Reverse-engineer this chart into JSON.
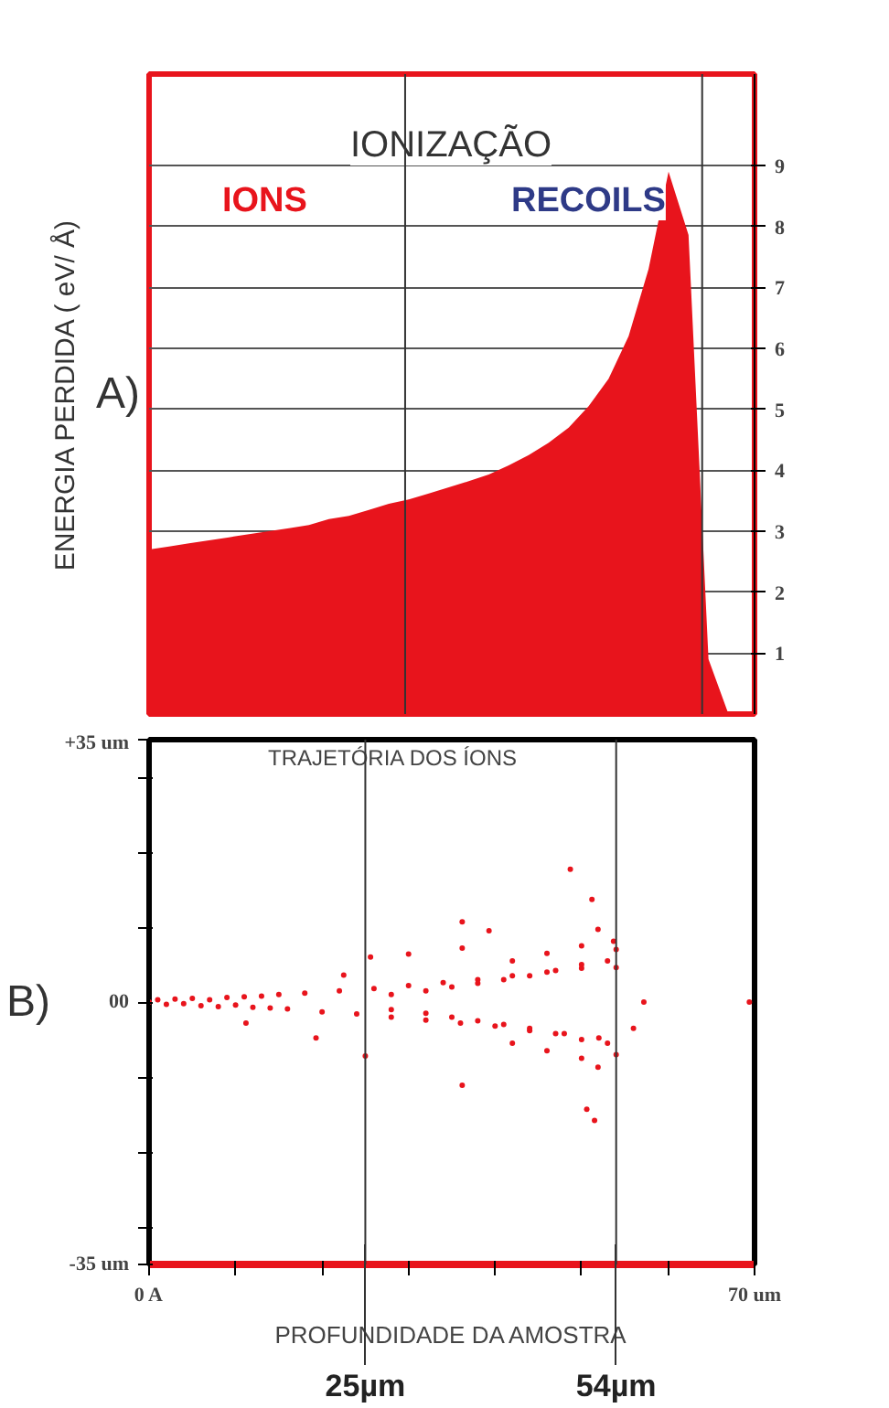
{
  "chart_data": [
    {
      "type": "area",
      "title": "IONIZAÇÃO",
      "ylabel": "ENERGIA PERDIDA ( eV/ Å)",
      "annotations": [
        "IONS",
        "RECOILS",
        "A)"
      ],
      "categories": [
        null,
        null,
        null,
        null,
        null,
        null,
        null,
        null,
        null,
        null,
        null,
        null,
        null,
        null,
        null,
        null,
        null,
        null,
        null,
        null,
        null,
        null,
        null,
        null,
        null,
        null,
        null,
        null,
        null,
        null
      ],
      "series": [
        {
          "color": "#e8141c",
          "values": [
            2.7,
            2.75,
            2.8,
            2.85,
            2.9,
            2.95,
            3.0,
            3.05,
            3.1,
            3.2,
            3.25,
            3.35,
            3.45,
            3.52,
            3.62,
            3.72,
            3.82,
            3.93,
            4.08,
            4.25,
            4.45,
            4.7,
            5.05,
            5.5,
            6.2,
            7.3,
            8.9,
            7.86,
            0.9,
            0
          ]
        }
      ],
      "ylim": [
        0,
        10.5
      ],
      "yticks": [
        1,
        2,
        3,
        4,
        5,
        6,
        7,
        8,
        9
      ],
      "grid": "y"
    },
    {
      "type": "scatter",
      "title": "TRAJETÓRIA DOS ÍONS",
      "xlabel": "PROFUNDIDADE DA AMOSTRA",
      "annotations": [
        "B)"
      ],
      "x": [
        0,
        1,
        2,
        3,
        4,
        5,
        6,
        7,
        8,
        9,
        10,
        11,
        12,
        13,
        14,
        15,
        16,
        18,
        20,
        22,
        24,
        26,
        28,
        30,
        32,
        34,
        36,
        38,
        40,
        42,
        44,
        46,
        48,
        50,
        52,
        54,
        56,
        57.2,
        11.2,
        19.3,
        22.5,
        25.6,
        30,
        36.2,
        39.3,
        48.7,
        51.2,
        36.2,
        51.9,
        53.7,
        25,
        36.2,
        51.5,
        50.6,
        51.9,
        28,
        32,
        35,
        38,
        41,
        44,
        47,
        50,
        53,
        28,
        32,
        35,
        38,
        41,
        44,
        47,
        50,
        53,
        42,
        46,
        50,
        54,
        42,
        46,
        50,
        54,
        69.4
      ],
      "series": [
        {
          "color": "#e8141c",
          "values": [
            0,
            0.3,
            -0.3,
            0.4,
            -0.2,
            0.5,
            -0.5,
            0.3,
            -0.6,
            0.6,
            -0.4,
            0.7,
            -0.7,
            0.8,
            -0.8,
            1.0,
            -0.9,
            1.2,
            -1.3,
            1.5,
            -1.6,
            1.8,
            -2.0,
            2.2,
            -2.4,
            2.6,
            -2.8,
            3.0,
            -3.2,
            3.5,
            -3.8,
            4.0,
            -4.2,
            4.5,
            -4.8,
            4.6,
            -3.5,
            0,
            -2.8,
            -4.8,
            3.6,
            6.0,
            6.4,
            10.7,
            9.5,
            17.7,
            13.7,
            7.2,
            9.7,
            8.1,
            -7.2,
            -11.1,
            -15.8,
            -14.3,
            -8.7,
            1.0,
            1.5,
            2.0,
            2.5,
            3.0,
            3.5,
            4.2,
            5.0,
            5.5,
            -1.0,
            -1.5,
            -2.0,
            -2.5,
            -3.0,
            -3.5,
            -4.2,
            -5.0,
            -5.5,
            5.5,
            6.5,
            7.5,
            7.0,
            -5.5,
            -6.5,
            -7.5,
            -7.0,
            0
          ]
        }
      ],
      "xlim": [
        0,
        70
      ],
      "ylim": [
        -35,
        35
      ],
      "marker": "circle",
      "grid": false,
      "xticks": [
        {
          "value": 0,
          "label": "0 A"
        },
        {
          "value": 10,
          "label": null
        },
        {
          "value": 20,
          "label": null
        },
        {
          "value": 30,
          "label": null
        },
        {
          "value": 40,
          "label": null
        },
        {
          "value": 50,
          "label": null
        },
        {
          "value": 60,
          "label": null
        },
        {
          "value": 70,
          "label": "70 um"
        }
      ],
      "yticks": [
        {
          "value": -35,
          "label": "-35 um"
        },
        {
          "value": -30,
          "label": null
        },
        {
          "value": -20,
          "label": null
        },
        {
          "value": -10,
          "label": null
        },
        {
          "value": 0,
          "label": "00"
        },
        {
          "value": 10,
          "label": null
        },
        {
          "value": 20,
          "label": null
        },
        {
          "value": 30,
          "label": null
        },
        {
          "value": 35,
          "label": "+35 um"
        }
      ],
      "ref_lines": [
        {
          "axis": "x",
          "value": 25,
          "label": "25µm"
        },
        {
          "axis": "x",
          "value": 54,
          "label": "54µm"
        }
      ]
    }
  ]
}
